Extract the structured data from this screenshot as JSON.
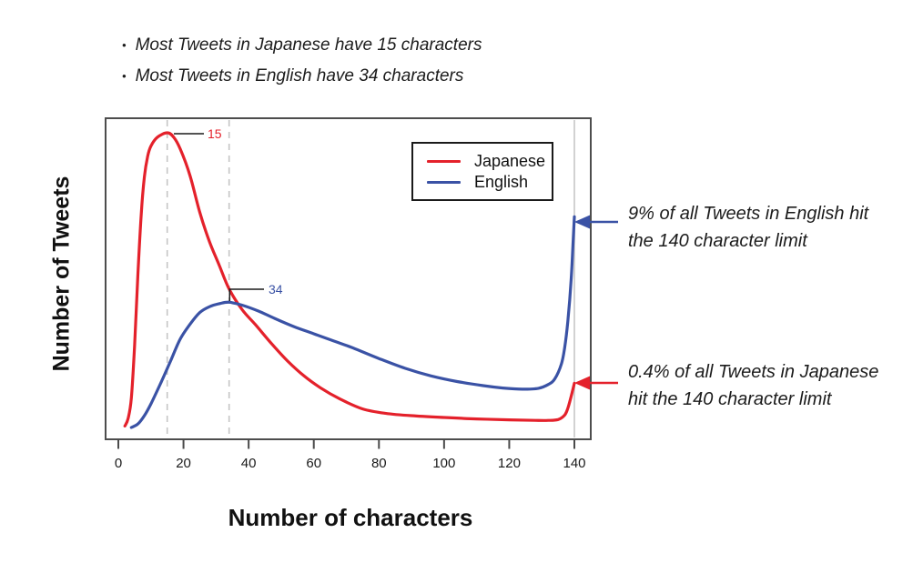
{
  "notes": {
    "bullet_marker": "•",
    "bullet1": "Most Tweets in Japanese have 15 characters",
    "bullet2": "Most Tweets in English have 34 characters"
  },
  "chart_data": {
    "type": "line",
    "xlabel": "Number of characters",
    "ylabel": "Number of Tweets",
    "xlim": [
      0,
      145
    ],
    "xticks": [
      "0",
      "20",
      "40",
      "60",
      "80",
      "100",
      "120",
      "140"
    ],
    "grid": false,
    "legend": {
      "position": "top-center",
      "entries": [
        {
          "label": "Japanese",
          "color": "#e4212b"
        },
        {
          "label": "English",
          "color": "#3a52a5"
        }
      ]
    },
    "series": [
      {
        "name": "Japanese",
        "color": "#e4212b",
        "peak_x": 15,
        "points": [
          [
            2,
            0.005
          ],
          [
            3,
            0.03
          ],
          [
            4,
            0.1
          ],
          [
            5,
            0.28
          ],
          [
            6,
            0.52
          ],
          [
            7,
            0.72
          ],
          [
            8,
            0.85
          ],
          [
            9,
            0.92
          ],
          [
            10,
            0.955
          ],
          [
            12,
            0.985
          ],
          [
            15,
            1.0
          ],
          [
            17,
            0.985
          ],
          [
            19,
            0.945
          ],
          [
            22,
            0.855
          ],
          [
            25,
            0.73
          ],
          [
            28,
            0.63
          ],
          [
            31,
            0.55
          ],
          [
            34,
            0.47
          ],
          [
            38,
            0.4
          ],
          [
            42,
            0.35
          ],
          [
            47,
            0.285
          ],
          [
            52,
            0.225
          ],
          [
            57,
            0.175
          ],
          [
            62,
            0.135
          ],
          [
            68,
            0.097
          ],
          [
            75,
            0.063
          ],
          [
            82,
            0.048
          ],
          [
            90,
            0.04
          ],
          [
            100,
            0.034
          ],
          [
            110,
            0.029
          ],
          [
            120,
            0.026
          ],
          [
            128,
            0.024
          ],
          [
            132,
            0.024
          ],
          [
            135,
            0.027
          ],
          [
            137,
            0.042
          ],
          [
            138,
            0.065
          ],
          [
            139,
            0.105
          ],
          [
            140,
            0.15
          ]
        ]
      },
      {
        "name": "English",
        "color": "#3a52a5",
        "peak_x": 34,
        "points": [
          [
            4,
            0.0
          ],
          [
            6,
            0.012
          ],
          [
            8,
            0.04
          ],
          [
            10,
            0.08
          ],
          [
            13,
            0.15
          ],
          [
            16,
            0.225
          ],
          [
            19,
            0.3
          ],
          [
            22,
            0.35
          ],
          [
            25,
            0.39
          ],
          [
            28,
            0.41
          ],
          [
            31,
            0.42
          ],
          [
            34,
            0.425
          ],
          [
            38,
            0.415
          ],
          [
            43,
            0.395
          ],
          [
            48,
            0.37
          ],
          [
            54,
            0.342
          ],
          [
            60,
            0.318
          ],
          [
            66,
            0.294
          ],
          [
            72,
            0.27
          ],
          [
            80,
            0.234
          ],
          [
            88,
            0.201
          ],
          [
            96,
            0.175
          ],
          [
            104,
            0.156
          ],
          [
            112,
            0.142
          ],
          [
            118,
            0.134
          ],
          [
            124,
            0.13
          ],
          [
            129,
            0.133
          ],
          [
            132,
            0.146
          ],
          [
            134,
            0.165
          ],
          [
            136,
            0.215
          ],
          [
            137,
            0.27
          ],
          [
            138,
            0.36
          ],
          [
            139,
            0.5
          ],
          [
            139.6,
            0.63
          ],
          [
            140,
            0.715
          ]
        ]
      }
    ],
    "markers": [
      {
        "label": "15",
        "x": 15,
        "color": "#e4212b"
      },
      {
        "label": "34",
        "x": 34,
        "color": "#3a52a5"
      }
    ],
    "reference_line_x": 140,
    "annotations": [
      {
        "series": "English",
        "color": "#3a52a5",
        "line1": "9% of all Tweets in English hit",
        "line2": "the 140 character limit"
      },
      {
        "series": "Japanese",
        "color": "#e4212b",
        "line1": "0.4% of all Tweets in Japanese",
        "line2": "hit the 140 character limit"
      }
    ]
  }
}
